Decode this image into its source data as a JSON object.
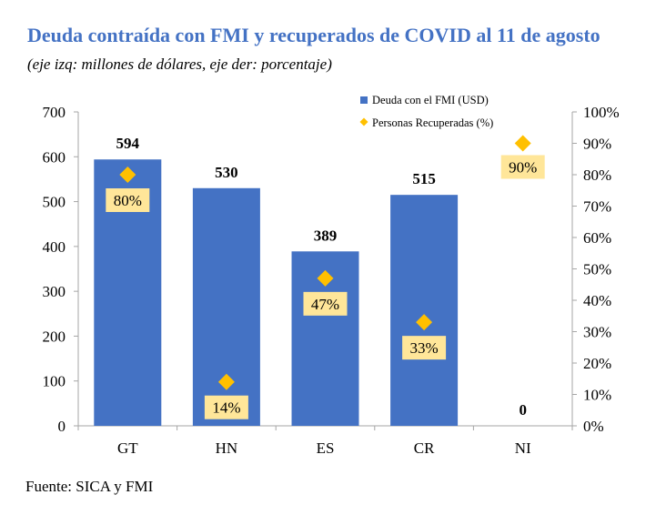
{
  "title": "Deuda contraída con FMI y recuperados de COVID al 11 de agosto",
  "subtitle": "(eje izq: millones de dólares, eje der: porcentaje)",
  "source": "Fuente: SICA y FMI",
  "colors": {
    "bar": "#4472C4",
    "marker": "#FFC000",
    "label_box": "#FFE699",
    "title": "#4472C4"
  },
  "chart_data": {
    "type": "bar",
    "categories": [
      "GT",
      "HN",
      "ES",
      "CR",
      "NI"
    ],
    "series": [
      {
        "name": "Deuda con el FMI (USD)",
        "type": "bar",
        "axis": "left",
        "values": [
          594,
          530,
          389,
          515,
          0
        ],
        "labels": [
          "594",
          "530",
          "389",
          "515",
          "0"
        ]
      },
      {
        "name": "Personas Recuperadas (%)",
        "type": "scatter",
        "axis": "right",
        "marker": "diamond",
        "values": [
          80,
          14,
          47,
          33,
          90
        ],
        "labels": [
          "80%",
          "14%",
          "47%",
          "33%",
          "90%"
        ]
      }
    ],
    "y_left": {
      "range": [
        0,
        700
      ],
      "ticks": [
        "0",
        "100",
        "200",
        "300",
        "400",
        "500",
        "600",
        "700"
      ]
    },
    "y_right": {
      "range": [
        0,
        100
      ],
      "ticks": [
        "0%",
        "10%",
        "20%",
        "30%",
        "40%",
        "50%",
        "60%",
        "70%",
        "80%",
        "90%",
        "100%"
      ]
    },
    "legend": {
      "position": "top-right",
      "items": [
        "Deuda con el FMI (USD)",
        "Personas Recuperadas (%)"
      ]
    },
    "grid": false
  }
}
